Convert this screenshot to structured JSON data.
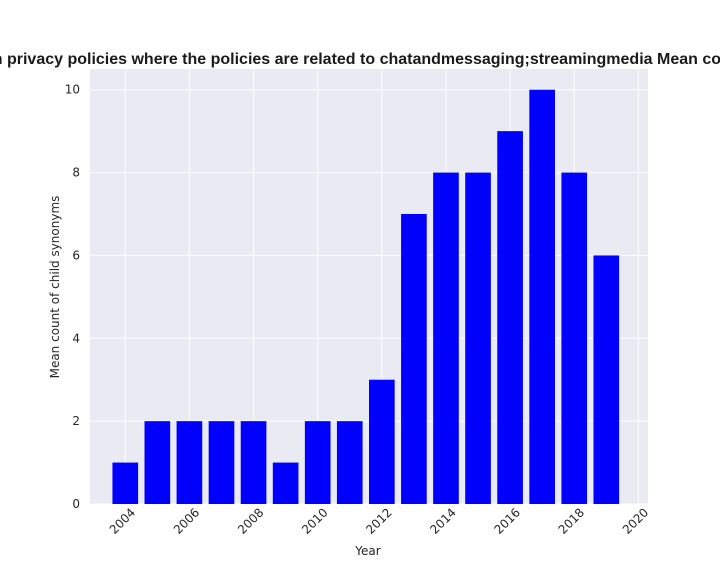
{
  "chart_data": {
    "type": "bar",
    "title": "Mean count of child synonyms in privacy policies where the policies are related to chatandmessaging;streamingmedia Mean count of child synonyms in privacy",
    "xlabel": "Year",
    "ylabel": "Mean count of child synonyms",
    "x": [
      2004,
      2005,
      2006,
      2007,
      2008,
      2009,
      2010,
      2011,
      2012,
      2013,
      2014,
      2015,
      2016,
      2017,
      2018,
      2019
    ],
    "values": [
      1,
      2,
      2,
      2,
      2,
      1,
      2,
      2,
      3,
      7,
      8,
      8,
      9,
      10,
      8,
      6
    ],
    "xlim": [
      2002.9,
      2020.3
    ],
    "ylim": [
      0,
      10.5
    ],
    "xticks": [
      2004,
      2006,
      2008,
      2010,
      2012,
      2014,
      2016,
      2018,
      2020
    ],
    "yticks": [
      0,
      2,
      4,
      6,
      8,
      10
    ],
    "bar_color": "#0000ff",
    "plot_background": "#eaeaf2",
    "grid": true,
    "grid_color": "#ffffff"
  }
}
